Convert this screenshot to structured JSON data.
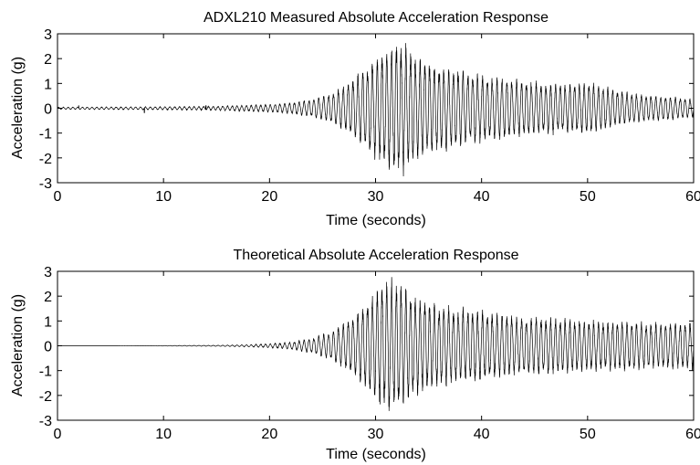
{
  "chart_data": [
    {
      "type": "line",
      "title": "ADXL210 Measured Absolute Acceleration Response",
      "xlabel": "Time (seconds)",
      "ylabel": "Acceleration (g)",
      "xlim": [
        0,
        60
      ],
      "ylim": [
        -3,
        3
      ],
      "xticks": [
        "0",
        "10",
        "20",
        "30",
        "40",
        "50",
        "60"
      ],
      "yticks": [
        "3",
        "2",
        "1",
        "0",
        "-1",
        "-2",
        "-3"
      ],
      "grid": false,
      "color": "#000000",
      "series": [
        {
          "envelope": {
            "t": [
              0,
              5,
              10,
              15,
              18,
              20,
              22,
              24,
              26,
              28,
              30,
              31,
              32,
              33,
              34,
              36,
              38,
              40,
              42,
              44,
              46,
              48,
              50,
              52,
              54,
              56,
              58,
              60
            ],
            "amp": [
              0.04,
              0.05,
              0.06,
              0.08,
              0.12,
              0.15,
              0.22,
              0.35,
              0.6,
              1.2,
              2.0,
              2.3,
              2.6,
              2.4,
              2.0,
              1.7,
              1.5,
              1.3,
              1.2,
              1.1,
              1.0,
              0.95,
              1.0,
              0.8,
              0.6,
              0.5,
              0.45,
              0.35
            ]
          },
          "spikes": [
            {
              "t": 8.2,
              "v": -0.18
            },
            {
              "t": 2.0,
              "v": 0.1
            },
            {
              "t": 14.0,
              "v": 0.1
            }
          ],
          "dominant_frequency_hz": 2.2
        }
      ]
    },
    {
      "type": "line",
      "title": "Theoretical Absolute Acceleration Response",
      "xlabel": "Time (seconds)",
      "ylabel": "Acceleration (g)",
      "xlim": [
        0,
        60
      ],
      "ylim": [
        -3,
        3
      ],
      "xticks": [
        "0",
        "10",
        "20",
        "30",
        "40",
        "50",
        "60"
      ],
      "yticks": [
        "3",
        "2",
        "1",
        "0",
        "-1",
        "-2",
        "-3"
      ],
      "grid": false,
      "color": "#000000",
      "series": [
        {
          "envelope": {
            "t": [
              0,
              5,
              10,
              15,
              18,
              20,
              22,
              24,
              26,
              28,
              30,
              31,
              32,
              33,
              34,
              36,
              38,
              40,
              42,
              44,
              46,
              48,
              50,
              52,
              54,
              56,
              58,
              60
            ],
            "amp": [
              0.0,
              0.0,
              0.01,
              0.02,
              0.04,
              0.08,
              0.14,
              0.3,
              0.6,
              1.2,
              2.2,
              2.6,
              2.5,
              2.2,
              1.9,
              1.6,
              1.45,
              1.35,
              1.25,
              1.15,
              1.1,
              1.05,
              1.0,
              0.95,
              0.95,
              0.9,
              0.9,
              0.95
            ]
          },
          "spikes": [],
          "dominant_frequency_hz": 2.2
        }
      ]
    }
  ]
}
